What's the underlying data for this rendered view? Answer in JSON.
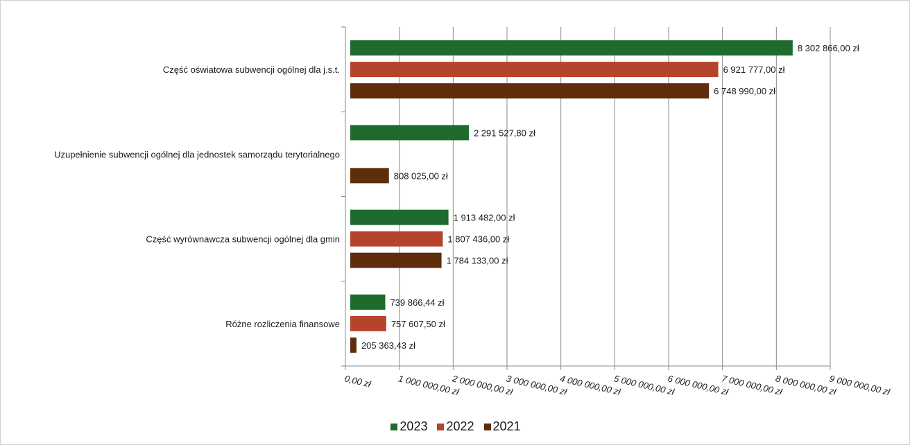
{
  "chart_data": {
    "type": "bar",
    "orientation": "horizontal",
    "categories": [
      "Część oświatowa subwencji ogólnej dla j.s.t.",
      "Uzupełnienie subwencji ogólnej dla jednostek samorządu terytorialnego",
      "Część wyrównawcza subwencji ogólnej dla gmin",
      "Różne rozliczenia finansowe"
    ],
    "series": [
      {
        "name": "2023",
        "color": "#1f6b2e",
        "values": [
          8302866.0,
          2291527.8,
          1913482.0,
          739866.44
        ],
        "labels": [
          "8 302 866,00 zł",
          "2 291 527,80 zł",
          "1 913 482,00 zł",
          "739 866,44 zł"
        ]
      },
      {
        "name": "2022",
        "color": "#b5442a",
        "values": [
          6921777.0,
          null,
          1807436.0,
          757607.5
        ],
        "labels": [
          "6 921 777,00 zł",
          "",
          "1 807 436,00 zł",
          "757 607,50 zł"
        ]
      },
      {
        "name": "2021",
        "color": "#5e2d0c",
        "values": [
          6748990.0,
          808025.0,
          1784133.0,
          205363.43
        ],
        "labels": [
          "6 748 990,00 zł",
          "808 025,00 zł",
          "1 784 133,00 zł",
          "205 363,43 zł"
        ]
      }
    ],
    "xlim": [
      0,
      9000000
    ],
    "xticks": [
      0,
      1000000,
      2000000,
      3000000,
      4000000,
      5000000,
      6000000,
      7000000,
      8000000,
      9000000
    ],
    "xtick_labels": [
      "0,00 zł",
      "1 000 000,00 zł",
      "2 000 000,00 zł",
      "3 000 000,00 zł",
      "4 000 000,00 zł",
      "5 000 000,00 zł",
      "6 000 000,00 zł",
      "7 000 000,00 zł",
      "8 000 000,00 zł",
      "9 000 000,00 zł"
    ],
    "grid": true,
    "legend_position": "bottom"
  }
}
